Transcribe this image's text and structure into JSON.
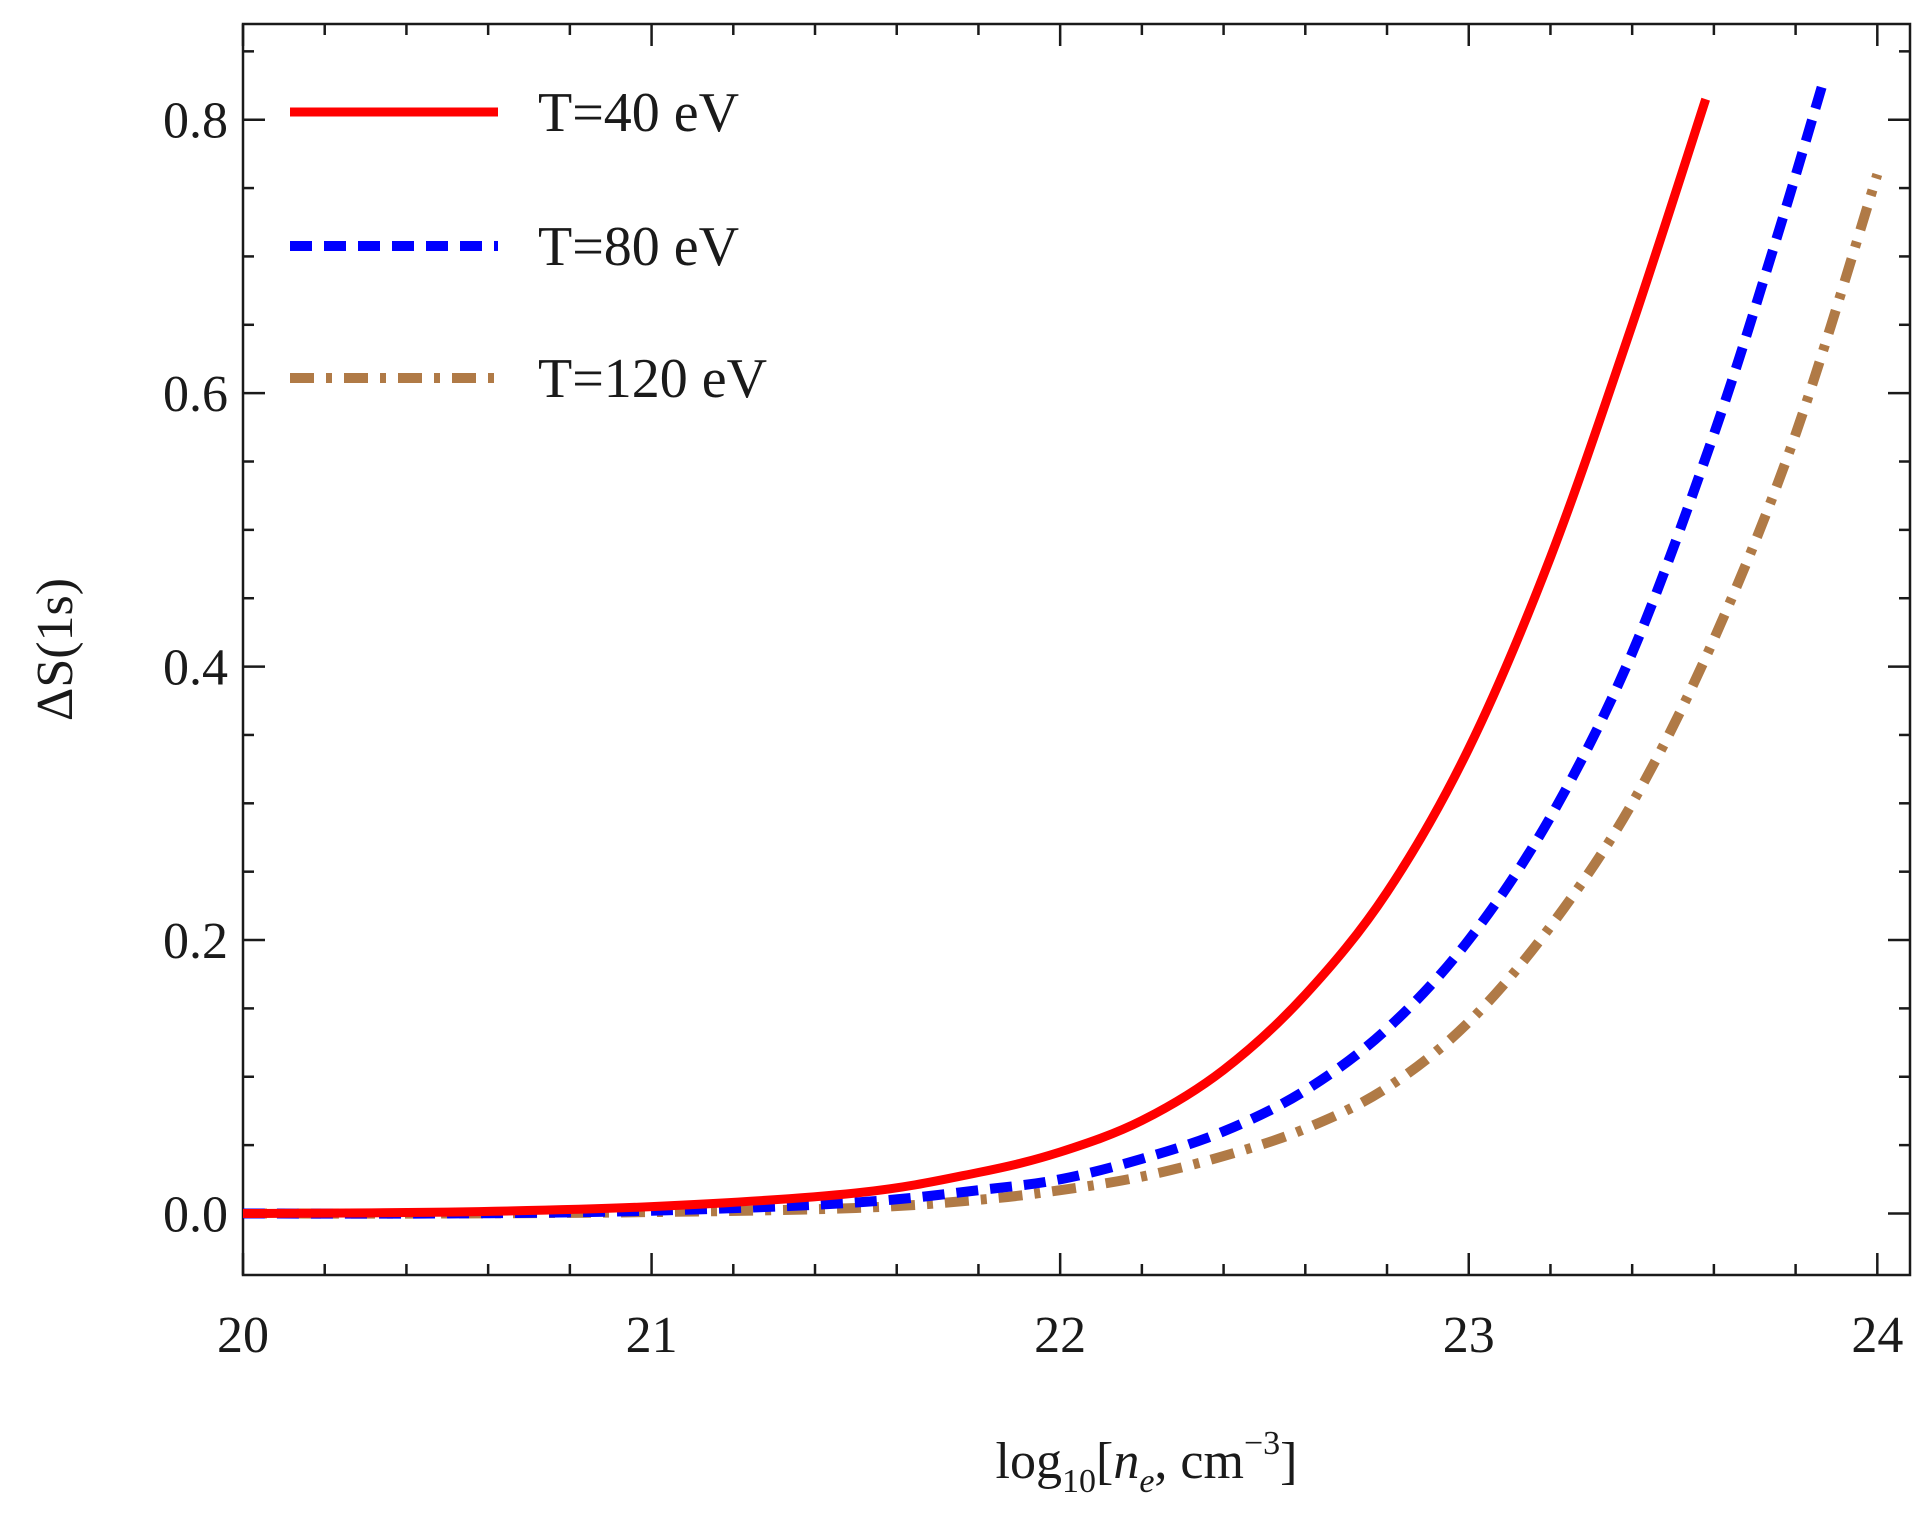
{
  "chart_data": {
    "type": "line",
    "title": "",
    "xlabel": {
      "prefix": "log",
      "sub": "10",
      "open": "[",
      "var": "n",
      "var_sub": "e",
      "mid": ", cm",
      "sup": "−3",
      "close": "]"
    },
    "ylabel": "ΔS(1s)",
    "xlim": [
      20,
      24.08
    ],
    "ylim": [
      -0.045,
      0.87
    ],
    "xticks": [
      20,
      21,
      22,
      23,
      24
    ],
    "xtick_labels": [
      "20",
      "21",
      "22",
      "23",
      "24"
    ],
    "yticks": [
      0.0,
      0.2,
      0.4,
      0.6,
      0.8
    ],
    "ytick_labels": [
      "0.0",
      "0.2",
      "0.4",
      "0.6",
      "0.8"
    ],
    "x_minor_step": 0.2,
    "y_minor_step": 0.05,
    "legend_position": "top-left",
    "series": [
      {
        "name": "T=40 eV",
        "color": "#ff0000",
        "style": "solid",
        "x": [
          20.0,
          20.5,
          21.0,
          21.5,
          21.8,
          22.0,
          22.2,
          22.4,
          22.6,
          22.8,
          23.0,
          23.2,
          23.4,
          23.58
        ],
        "y": [
          0.0,
          0.001,
          0.005,
          0.015,
          0.03,
          0.045,
          0.068,
          0.105,
          0.16,
          0.235,
          0.34,
          0.48,
          0.65,
          0.815
        ]
      },
      {
        "name": "T=80 eV",
        "color": "#0000ff",
        "style": "dashed",
        "x": [
          20.0,
          20.5,
          21.0,
          21.5,
          21.8,
          22.0,
          22.2,
          22.4,
          22.6,
          22.8,
          23.0,
          23.2,
          23.4,
          23.6,
          23.75,
          23.87
        ],
        "y": [
          0.0,
          0.0,
          0.002,
          0.008,
          0.017,
          0.025,
          0.04,
          0.06,
          0.09,
          0.135,
          0.2,
          0.29,
          0.41,
          0.57,
          0.71,
          0.83
        ]
      },
      {
        "name": "T=120 eV",
        "color": "#b07a46",
        "style": "dashdot",
        "x": [
          20.0,
          20.5,
          21.0,
          21.5,
          21.8,
          22.0,
          22.2,
          22.4,
          22.6,
          22.8,
          23.0,
          23.2,
          23.4,
          23.6,
          23.8,
          24.0
        ],
        "y": [
          0.0,
          0.0,
          0.001,
          0.004,
          0.01,
          0.017,
          0.027,
          0.042,
          0.062,
          0.092,
          0.14,
          0.21,
          0.3,
          0.42,
          0.57,
          0.76
        ]
      }
    ]
  }
}
